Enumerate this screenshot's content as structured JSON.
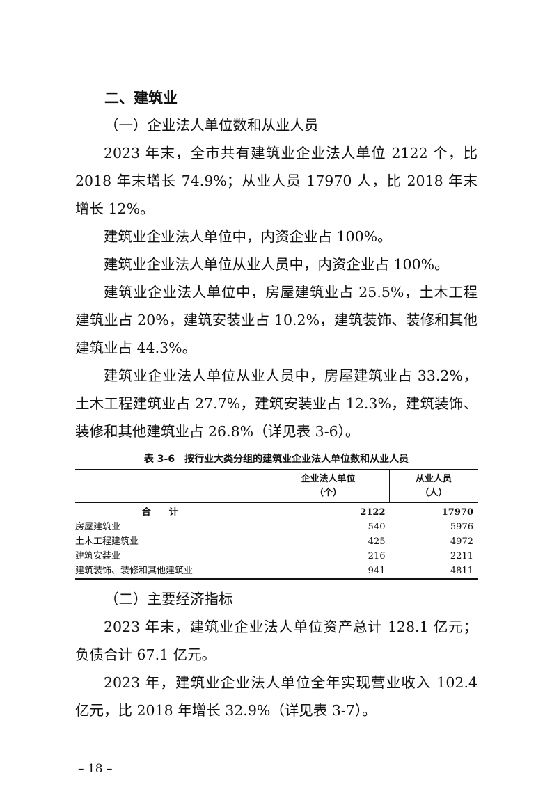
{
  "heading": "二、建筑业",
  "section1": {
    "title": "（一）企业法人单位数和从业人员",
    "paragraphs": [
      "2023 年末，全市共有建筑业企业法人单位 2122 个，比 2018 年末增长 74.9%；从业人员 17970 人，比 2018 年末增长 12%。",
      "建筑业企业法人单位中，内资企业占 100%。",
      "建筑业企业法人单位从业人员中，内资企业占 100%。",
      "建筑业企业法人单位中，房屋建筑业占 25.5%，土木工程建筑业占 20%，建筑安装业占 10.2%，建筑装饰、装修和其他建筑业占 44.3%。",
      "建筑业企业法人单位从业人员中，房屋建筑业占 33.2%，土木工程建筑业占 27.7%，建筑安装业占 12.3%，建筑装饰、装修和其他建筑业占 26.8%（详见表 3-6）。"
    ]
  },
  "table": {
    "caption": "表 3-6　按行业大类分组的建筑业企业法人单位数和从业人员",
    "headers": [
      {
        "label": "企业法人单位",
        "unit": "（个）"
      },
      {
        "label": "从业人员",
        "unit": "（人）"
      }
    ],
    "total": {
      "label": "合计",
      "units": "2122",
      "employees": "17970"
    },
    "rows": [
      {
        "label": "房屋建筑业",
        "units": "540",
        "employees": "5976"
      },
      {
        "label": "土木工程建筑业",
        "units": "425",
        "employees": "4972"
      },
      {
        "label": "建筑安装业",
        "units": "216",
        "employees": "2211"
      },
      {
        "label": "建筑装饰、装修和其他建筑业",
        "units": "941",
        "employees": "4811"
      }
    ]
  },
  "section2": {
    "title": "（二）主要经济指标",
    "paragraphs": [
      "2023 年末，建筑业企业法人单位资产总计 128.1 亿元；负债合计 67.1 亿元。",
      "2023 年，建筑业企业法人单位全年实现营业收入 102.4 亿元，比 2018 年增长 32.9%（详见表 3-7）。"
    ]
  },
  "page_number": "– 18 –"
}
